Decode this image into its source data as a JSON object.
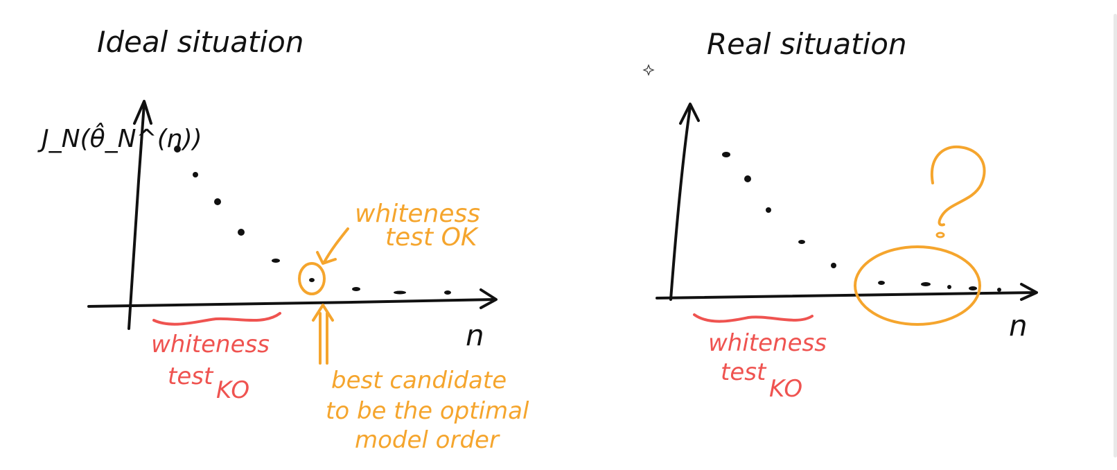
{
  "colors": {
    "ink": "#111111",
    "orange": "#f5a52d",
    "red": "#ef5350",
    "background": "#ffffff"
  },
  "left_panel": {
    "title": "Ideal situation",
    "y_axis_label": "J_N(θ̂_N^(n))",
    "x_axis_label": "n",
    "whiteness_ok": [
      "whiteness",
      "test OK"
    ],
    "whiteness_ko": [
      "whiteness",
      "test",
      "KO"
    ],
    "best_candidate": [
      "best candidate",
      "to be the optimal",
      "model order"
    ]
  },
  "right_panel": {
    "title": "Real situation",
    "x_axis_label": "n",
    "question_mark": "?",
    "whiteness_ko": [
      "whiteness",
      "test",
      "KO"
    ]
  },
  "icons": {
    "cursor": "sparkle-cursor-icon"
  }
}
